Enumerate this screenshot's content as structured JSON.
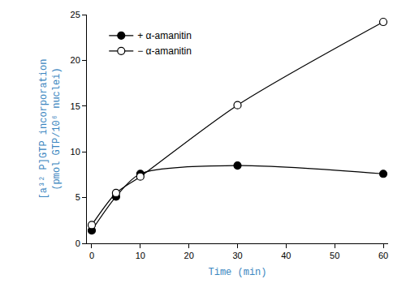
{
  "chart_data": {
    "type": "line",
    "x_label": "Time (min)",
    "y_label": [
      "[a³² P]GTP incorporation",
      "(pmol GTP/10⁶ nuclei)"
    ],
    "x": [
      0,
      5,
      10,
      30,
      60
    ],
    "series": [
      {
        "name": "+ α-amanitin",
        "color": "#000000",
        "marker": "filled circle",
        "values": [
          1.4,
          5.1,
          7.6,
          8.5,
          7.6
        ]
      },
      {
        "name": "− α-amanitin",
        "color": "#000000",
        "marker": "open circle",
        "values": [
          2.0,
          5.5,
          7.3,
          15.1,
          24.2
        ]
      }
    ],
    "xlim": [
      -1,
      61
    ],
    "xticks": [
      0,
      10,
      20,
      30,
      40,
      50,
      60
    ],
    "ylim": [
      0,
      25
    ],
    "yticks": [
      0,
      5,
      10,
      15,
      20,
      25
    ],
    "grid": false,
    "legend": "upper left"
  }
}
